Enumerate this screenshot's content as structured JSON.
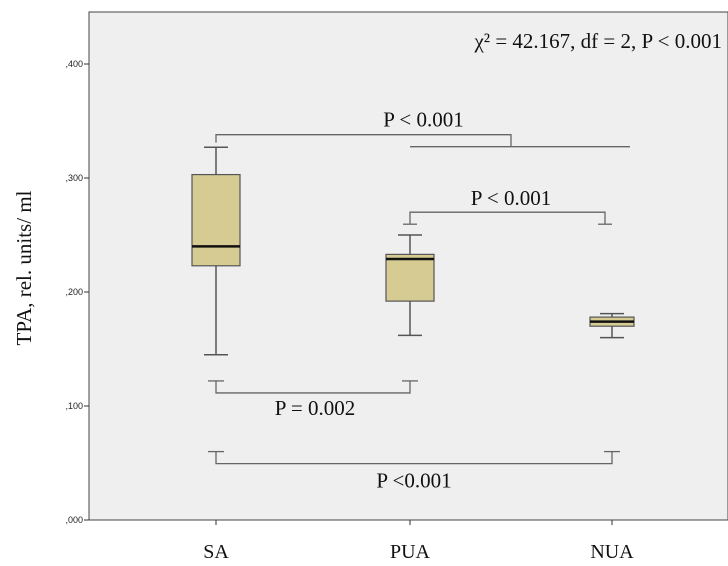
{
  "chart_data": {
    "type": "box",
    "title": "",
    "ylabel": "TPA, rel. units/ ml",
    "xlabel": "",
    "ylim": [
      0,
      0.45
    ],
    "yticks": [
      0,
      0.1,
      0.2,
      0.3,
      0.4
    ],
    "ytick_labels": [
      ",000",
      ",100",
      ",200",
      ",300",
      ",400"
    ],
    "categories": [
      "SA",
      "PUA",
      "NUA"
    ],
    "boxes": [
      {
        "category": "SA",
        "whisker_low": 0.145,
        "q1": 0.223,
        "median": 0.24,
        "q3": 0.303,
        "whisker_high": 0.327
      },
      {
        "category": "PUA",
        "whisker_low": 0.162,
        "q1": 0.192,
        "median": 0.229,
        "q3": 0.233,
        "whisker_high": 0.25
      },
      {
        "category": "NUA",
        "whisker_low": 0.16,
        "q1": 0.17,
        "median": 0.174,
        "q3": 0.178,
        "whisker_high": 0.181
      }
    ],
    "annotations": {
      "stats": "χ² = 42.167, df = 2, P < 0.001",
      "brackets": [
        {
          "from": "SA",
          "to": "PUA+NUA",
          "label": "P < 0.001",
          "y": 0.338
        },
        {
          "from": "PUA",
          "to": "NUA",
          "label": "P < 0.001",
          "y": 0.27
        },
        {
          "from": "SA",
          "to": "PUA",
          "label": "P = 0.002",
          "y": 0.122
        },
        {
          "from": "SA",
          "to": "NUA",
          "label": "P <0.001",
          "y": 0.06
        }
      ]
    },
    "colors": {
      "plot_bg": "#efefef",
      "box_fill": "#d6cc93",
      "box_edge": "#555555",
      "median": "#111111",
      "line": "#666666"
    }
  }
}
